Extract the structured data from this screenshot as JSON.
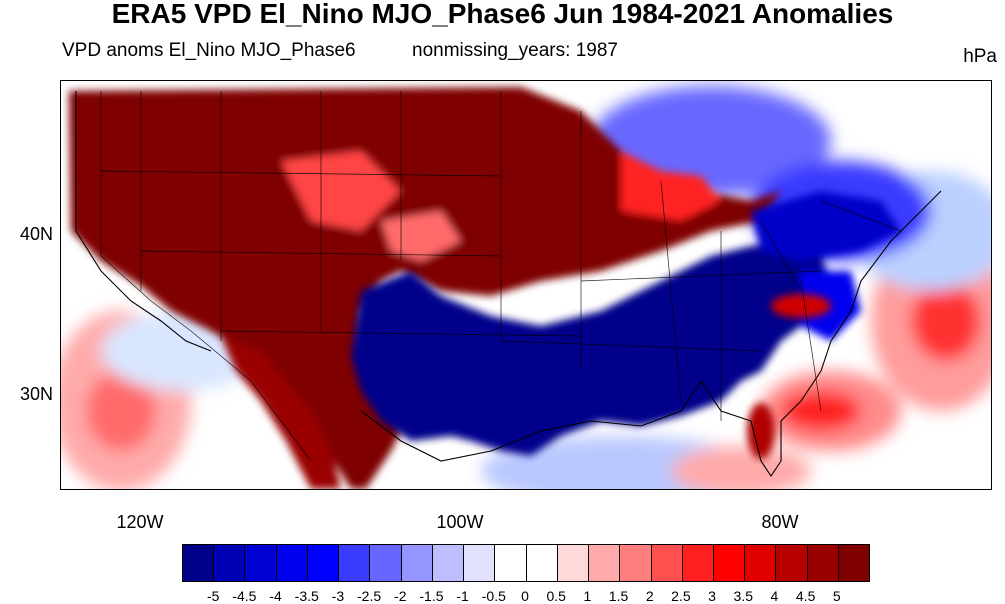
{
  "title": "ERA5 VPD El_Nino MJO_Phase6 Jun 1984-2021 Anomalies",
  "subtitle_left": "VPD anoms El_Nino MJO_Phase6",
  "subtitle_center": "nonmissing_years: 1987",
  "units": "hPa",
  "map": {
    "lat_labels": [
      "40N",
      "30N"
    ],
    "lon_labels": [
      "120W",
      "100W",
      "80W"
    ]
  },
  "colorbar": {
    "labels": [
      "-5",
      "-4.5",
      "-4",
      "-3.5",
      "-3",
      "-2.5",
      "-2",
      "-1.5",
      "-1",
      "-0.5",
      "0",
      "0.5",
      "1",
      "1.5",
      "2",
      "2.5",
      "3",
      "3.5",
      "4",
      "4.5",
      "5"
    ],
    "colors": [
      "#00008b",
      "#0000b4",
      "#0000d2",
      "#0000ee",
      "#0000ff",
      "#3b3bff",
      "#6767ff",
      "#9595ff",
      "#bdbdff",
      "#e2e2ff",
      "#ffffff",
      "#ffffff",
      "#ffd9d9",
      "#ffaaaa",
      "#ff7f7f",
      "#ff4f4f",
      "#ff1f1f",
      "#ff0000",
      "#e00000",
      "#b80000",
      "#9a0000",
      "#800000"
    ]
  }
}
